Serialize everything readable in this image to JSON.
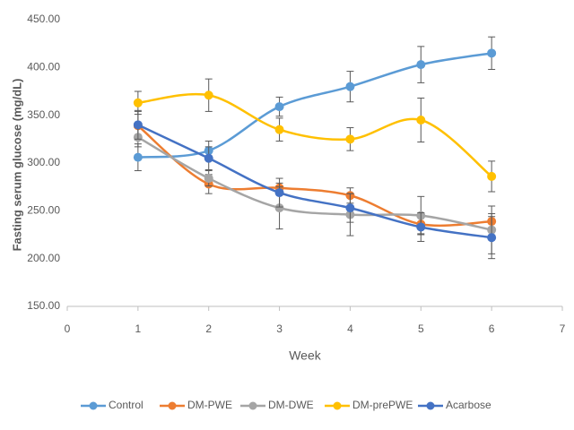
{
  "chart_data": {
    "type": "line",
    "x_label": "Week",
    "y_label": "Fasting serum glucose (mg/dL)",
    "xlim": [
      0,
      7
    ],
    "xticks": [
      0,
      1,
      2,
      3,
      4,
      5,
      6,
      7
    ],
    "ylim": [
      150,
      450
    ],
    "yticks": [
      {
        "value": 150,
        "label": "150.00"
      },
      {
        "value": 200,
        "label": "200.00"
      },
      {
        "value": 250,
        "label": "250.00"
      },
      {
        "value": 300,
        "label": "300.00"
      },
      {
        "value": 350,
        "label": "350.00"
      },
      {
        "value": 400,
        "label": "400.00"
      },
      {
        "value": 450,
        "label": "450.00"
      }
    ],
    "grid": false,
    "legend": "bottom",
    "x": [
      1,
      2,
      3,
      4,
      5,
      6
    ],
    "series": [
      {
        "name": "Control",
        "color": "#5b9bd5",
        "values": [
          306,
          313,
          359,
          380,
          403,
          415
        ],
        "errors": [
          14,
          10,
          10,
          16,
          19,
          17
        ]
      },
      {
        "name": "DM-PWE",
        "color": "#ed7d31",
        "values": [
          339,
          278,
          274,
          266,
          236,
          239
        ],
        "errors": [
          15,
          10,
          5,
          8,
          10,
          8
        ]
      },
      {
        "name": "DM-DWE",
        "color": "#a5a5a5",
        "values": [
          327,
          284,
          253,
          246,
          245,
          230
        ],
        "errors": [
          10,
          8,
          22,
          22,
          20,
          25
        ]
      },
      {
        "name": "DM-prePWE",
        "color": "#ffc000",
        "values": [
          363,
          371,
          335,
          325,
          345,
          286
        ],
        "errors": [
          12,
          17,
          12,
          12,
          23,
          16
        ]
      },
      {
        "name": "Acarbose",
        "color": "#4472c4",
        "values": [
          340,
          305,
          269,
          253,
          233,
          222
        ],
        "errors": [
          15,
          12,
          15,
          15,
          15,
          22
        ]
      }
    ]
  }
}
